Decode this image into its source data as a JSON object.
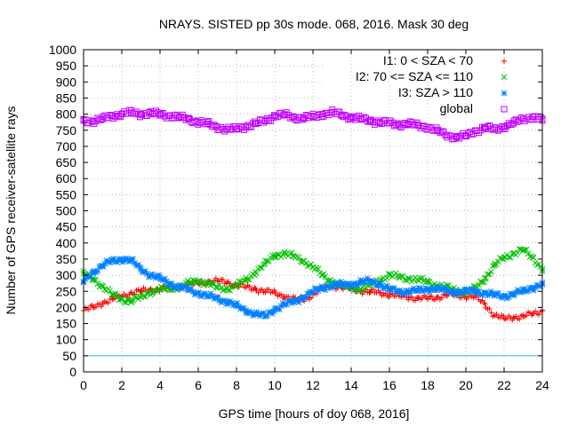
{
  "chart_data": {
    "type": "scatter",
    "title": "NRAYS. SISTED pp 30s mode. 068, 2016. Mask 30 deg",
    "xlabel": "GPS time [hours of doy 068, 2016]",
    "ylabel": "Number of GPS receiver-satellite rays",
    "xlim": [
      0,
      24
    ],
    "ylim": [
      0,
      1000
    ],
    "xticks": [
      0,
      2,
      4,
      6,
      8,
      10,
      12,
      14,
      16,
      18,
      20,
      22,
      24
    ],
    "yticks": [
      0,
      50,
      100,
      150,
      200,
      250,
      300,
      350,
      400,
      450,
      500,
      550,
      600,
      650,
      700,
      750,
      800,
      850,
      900,
      950,
      1000
    ],
    "xtick_labels": [
      "0",
      "2",
      "4",
      "6",
      "8",
      "10",
      "12",
      "14",
      "16",
      "18",
      "20",
      "22",
      "24"
    ],
    "ytick_labels": [
      "0",
      "50",
      "100",
      "150",
      "200",
      "250",
      "300",
      "350",
      "400",
      "450",
      "500",
      "550",
      "600",
      "650",
      "700",
      "750",
      "800",
      "850",
      "900",
      "950",
      "1000"
    ],
    "grid": true,
    "legend_position": "top-right",
    "x": [
      0,
      0.5,
      1,
      1.5,
      2,
      2.5,
      3,
      3.5,
      4,
      4.5,
      5,
      5.5,
      6,
      6.5,
      7,
      7.5,
      8,
      8.5,
      9,
      9.5,
      10,
      10.5,
      11,
      11.5,
      12,
      12.5,
      13,
      13.5,
      14,
      14.5,
      15,
      15.5,
      16,
      16.5,
      17,
      17.5,
      18,
      18.5,
      19,
      19.5,
      20,
      20.5,
      21,
      21.5,
      22,
      22.5,
      23,
      23.5,
      24
    ],
    "series": [
      {
        "name": "I1: 0 < SZA < 70",
        "marker": "+",
        "color": "#ff0000",
        "values": [
          190,
          200,
          215,
          225,
          235,
          245,
          250,
          255,
          258,
          262,
          265,
          270,
          275,
          280,
          282,
          278,
          270,
          262,
          258,
          250,
          245,
          235,
          225,
          225,
          240,
          258,
          268,
          262,
          258,
          252,
          248,
          245,
          240,
          235,
          232,
          228,
          228,
          232,
          238,
          238,
          235,
          232,
          210,
          175,
          165,
          170,
          172,
          180,
          190
        ]
      },
      {
        "name": "I2: 70 <= SZA <= 110",
        "marker": "x",
        "color": "#00c000",
        "values": [
          305,
          290,
          265,
          240,
          225,
          220,
          232,
          248,
          255,
          258,
          265,
          275,
          282,
          275,
          262,
          258,
          268,
          285,
          310,
          335,
          362,
          368,
          358,
          345,
          325,
          300,
          280,
          268,
          260,
          258,
          270,
          285,
          300,
          295,
          290,
          285,
          280,
          268,
          262,
          255,
          245,
          260,
          290,
          330,
          355,
          368,
          378,
          355,
          320
        ]
      },
      {
        "name": "I3: SZA > 110",
        "marker": "*",
        "color": "#0080ff",
        "values": [
          280,
          310,
          330,
          345,
          350,
          345,
          320,
          300,
          290,
          275,
          262,
          255,
          245,
          235,
          228,
          218,
          205,
          190,
          180,
          172,
          195,
          208,
          218,
          232,
          248,
          262,
          268,
          270,
          272,
          278,
          282,
          272,
          255,
          250,
          250,
          252,
          258,
          258,
          252,
          248,
          250,
          250,
          245,
          238,
          235,
          242,
          250,
          262,
          272
        ]
      },
      {
        "name": "global",
        "marker": "□",
        "color": "#c000ff",
        "values": [
          780,
          778,
          785,
          795,
          800,
          805,
          800,
          802,
          800,
          795,
          790,
          785,
          775,
          770,
          760,
          752,
          755,
          762,
          770,
          780,
          795,
          798,
          790,
          788,
          792,
          800,
          805,
          798,
          790,
          785,
          780,
          775,
          772,
          768,
          770,
          765,
          760,
          748,
          735,
          728,
          732,
          748,
          758,
          752,
          762,
          772,
          785,
          792,
          780
        ]
      }
    ],
    "reference_line": {
      "y": 50,
      "color": "#20c0c0"
    }
  }
}
